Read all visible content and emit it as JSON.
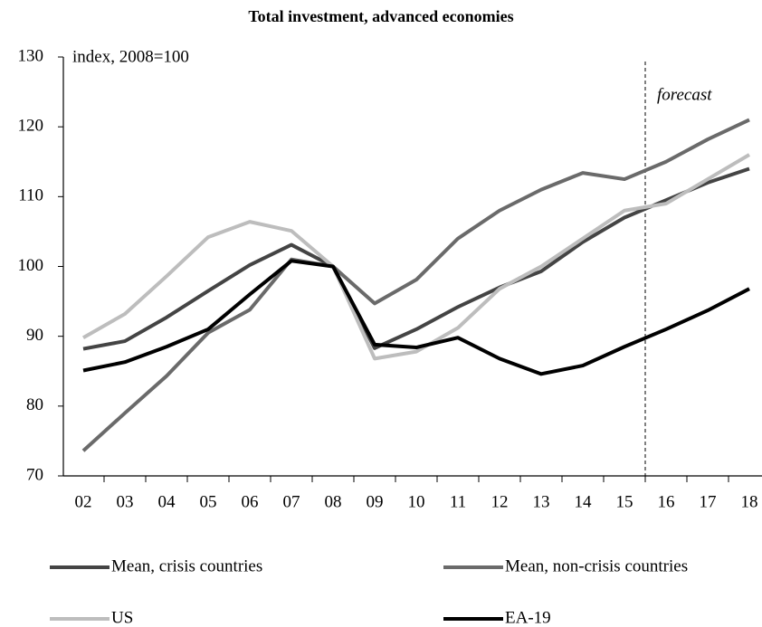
{
  "chart_data": {
    "type": "line",
    "title": "Total investment, advanced economies",
    "ylabel": "index, 2008=100",
    "annotation": "forecast",
    "categories": [
      "02",
      "03",
      "04",
      "05",
      "06",
      "07",
      "08",
      "09",
      "10",
      "11",
      "12",
      "13",
      "14",
      "15",
      "16",
      "17",
      "18"
    ],
    "ylim": [
      70,
      130
    ],
    "yticks": [
      70,
      80,
      90,
      100,
      110,
      120,
      130
    ],
    "series": [
      {
        "name": "Mean, crisis countries",
        "color": "#444444",
        "values": [
          88.2,
          89.3,
          92.7,
          96.5,
          100.2,
          103.1,
          100,
          88.3,
          91,
          94.2,
          97,
          99.3,
          103.5,
          107,
          109.5,
          112,
          114
        ]
      },
      {
        "name": "Mean, non-crisis countries",
        "color": "#6a6a6a",
        "values": [
          73.6,
          79,
          84.3,
          90.5,
          93.8,
          101,
          100,
          94.7,
          98.1,
          104,
          108,
          111,
          113.4,
          112.5,
          115,
          118.2,
          121
        ]
      },
      {
        "name": "US",
        "color": "#bdbdbd",
        "values": [
          89.8,
          93.2,
          98.6,
          104.2,
          106.4,
          105.1,
          100,
          86.8,
          87.8,
          91.2,
          96.8,
          100,
          104,
          108,
          109,
          112.5,
          116
        ]
      },
      {
        "name": "EA-19",
        "color": "#000000",
        "values": [
          85.1,
          86.3,
          88.5,
          91,
          96,
          100.8,
          100,
          88.8,
          88.4,
          89.8,
          86.8,
          84.6,
          85.8,
          88.5,
          91,
          93.7,
          96.8
        ]
      }
    ]
  }
}
